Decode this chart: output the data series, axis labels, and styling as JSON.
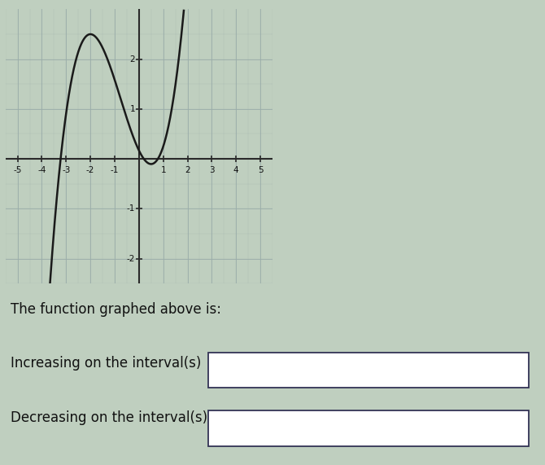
{
  "bg_color": "#bfcfbf",
  "graph_bg": "#bfcfbf",
  "curve_color": "#1a1a1a",
  "axis_color": "#2a2a2a",
  "grid_color": "#9aadaa",
  "xlim": [
    -5.5,
    5.5
  ],
  "ylim": [
    -2.5,
    3.0
  ],
  "xticks": [
    -5,
    -4,
    -3,
    -2,
    -1,
    1,
    2,
    3,
    4,
    5
  ],
  "yticks": [
    -2,
    -1,
    1,
    2
  ],
  "title_text": "The function graphed above is:",
  "label1": "Increasing on the interval(s)",
  "label2": "Decreasing on the interval(s)",
  "box_edge_color": "#333355",
  "text_color": "#111111",
  "font_size_labels": 12,
  "coeff_a": 0.3333,
  "coeff_b": 0.75,
  "coeff_c": -1.0,
  "coeff_d": 0.167
}
